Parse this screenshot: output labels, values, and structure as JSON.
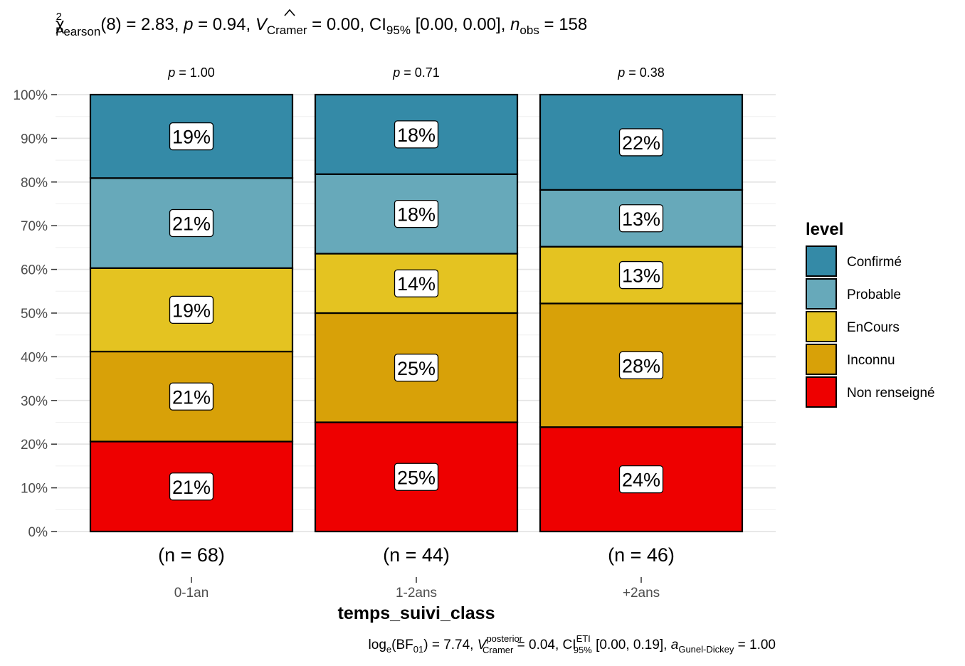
{
  "chart_data": {
    "type": "bar",
    "stacked": true,
    "normalized": true,
    "subtitle": {
      "chi_sym": "χ",
      "chi_sup": "2",
      "chi_sub": "Pearson",
      "df": "(8) = 2.83, ",
      "p_sym": "p",
      "p_val": " = 0.94, ",
      "v_sym": "V",
      "v_sub": "Cramer",
      "v_val": " = 0.00, CI",
      "ci_sub": "95%",
      "ci_val": " [0.00, 0.00], ",
      "n_sym": "n",
      "n_sub": "obs",
      "n_val": " = 158"
    },
    "caption": {
      "log": "log",
      "log_sub": "e",
      "bf_open": "(BF",
      "bf_sub": "01",
      "bf_close": ") = 7.74, ",
      "v_sym": "V",
      "v_sup": "posterior",
      "v_sub": "Cramer",
      "v_val": " = 0.04, CI",
      "ci_sup": "ETI",
      "ci_sub": "95%",
      "ci_val": " [0.00, 0.19], ",
      "a_sym": "a",
      "a_sub": "Gunel-Dickey",
      "a_val": " = 1.00"
    },
    "xlabel": "temps_suivi_class",
    "ylabel": "",
    "ylim": [
      0,
      1
    ],
    "y_ticks": [
      "0%",
      "10%",
      "20%",
      "30%",
      "40%",
      "50%",
      "60%",
      "70%",
      "80%",
      "90%",
      "100%"
    ],
    "grid": true,
    "categories": [
      "0-1an",
      "1-2ans",
      "+2ans"
    ],
    "counts": [
      "(n = 68)",
      "(n = 44)",
      "(n = 46)"
    ],
    "p_labels": [
      {
        "sym": "p",
        "val": " = 1.00"
      },
      {
        "sym": "p",
        "val": " = 0.71"
      },
      {
        "sym": "p",
        "val": " = 0.38"
      }
    ],
    "legend": {
      "title": "level",
      "position": "right",
      "entries": [
        "Confirmé",
        "Probable",
        "EnCours",
        "Inconnu",
        "Non renseigné"
      ]
    },
    "series": [
      {
        "name": "Non renseigné",
        "color": "#EE0000",
        "values": [
          0.206,
          0.25,
          0.239
        ],
        "labels": [
          "21%",
          "25%",
          "24%"
        ]
      },
      {
        "name": "Inconnu",
        "color": "#D8A108",
        "values": [
          0.206,
          0.25,
          0.283
        ],
        "labels": [
          "21%",
          "25%",
          "28%"
        ]
      },
      {
        "name": "EnCours",
        "color": "#E4C321",
        "values": [
          0.191,
          0.136,
          0.13
        ],
        "labels": [
          "19%",
          "14%",
          "13%"
        ]
      },
      {
        "name": "Probable",
        "color": "#67A9BA",
        "values": [
          0.206,
          0.182,
          0.13
        ],
        "labels": [
          "21%",
          "18%",
          "13%"
        ]
      },
      {
        "name": "Confirmé",
        "color": "#348AA7",
        "values": [
          0.191,
          0.182,
          0.218
        ],
        "labels": [
          "19%",
          "18%",
          "22%"
        ]
      }
    ]
  }
}
